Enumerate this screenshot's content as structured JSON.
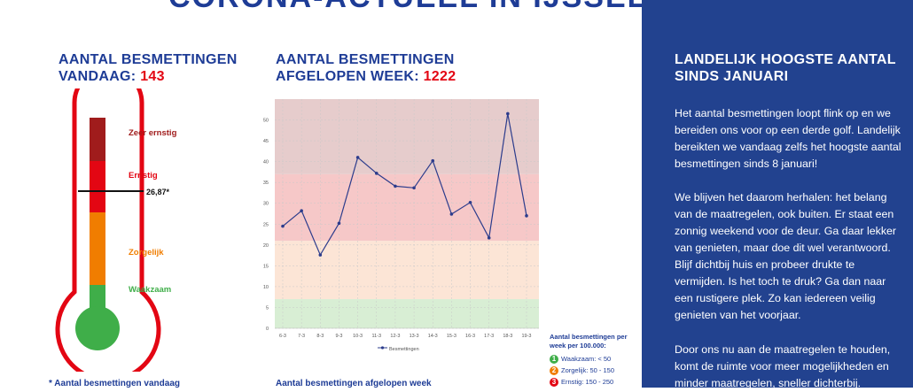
{
  "page_title": "CORONA-ACTUEEL IN IJSSELLAND",
  "thermometer": {
    "heading_line1": "AANTAL BESMETTINGEN",
    "heading_line2_prefix": "VANDAAG: ",
    "today_count": "143",
    "value_label": "26,87*",
    "value": 26.87,
    "levels": [
      {
        "label": "Zeer ernstig",
        "color": "#a01c1c"
      },
      {
        "label": "Ernstig",
        "color": "#e30613"
      },
      {
        "label": "Zorgelijk",
        "color": "#f07d00"
      },
      {
        "label": "Waakzaam",
        "color": "#3fae49"
      }
    ],
    "footnote": "* Aantal besmettingen vandaag"
  },
  "week": {
    "heading_line1": "AANTAL BESMETTINGEN",
    "heading_line2_prefix": "AFGELOPEN WEEK: ",
    "week_count": "1222",
    "footnote": "Aantal besmettingen afgelopen week"
  },
  "chart_data": {
    "type": "line",
    "title": "",
    "xlabel": "",
    "ylabel": "",
    "categories": [
      "6-3",
      "7-3",
      "8-3",
      "9-3",
      "10-3",
      "11-3",
      "12-3",
      "13-3",
      "14-3",
      "15-3",
      "16-3",
      "17-3",
      "18-3",
      "19-3"
    ],
    "series": [
      {
        "name": "Besmettingen",
        "values": [
          24.5,
          28.2,
          17.6,
          25.2,
          41.0,
          37.2,
          34.1,
          33.7,
          40.2,
          27.4,
          30.2,
          21.7,
          51.5,
          27.0
        ]
      }
    ],
    "ylim": [
      0,
      55
    ],
    "yticks": [
      0,
      5,
      10,
      15,
      20,
      25,
      30,
      35,
      40,
      45,
      50
    ],
    "grid": true,
    "bands": [
      {
        "from": 0,
        "to": 7,
        "color": "#d8eed4"
      },
      {
        "from": 7,
        "to": 21,
        "color": "#fce5d6"
      },
      {
        "from": 21,
        "to": 37,
        "color": "#f6c8c8"
      },
      {
        "from": 37,
        "to": 55,
        "color": "#e6cccc"
      }
    ],
    "line_color": "#2c3c8c",
    "legend": "bottom"
  },
  "legend": {
    "title": "Aantal besmettingen per week per 100.000:",
    "items": [
      {
        "num": "1",
        "label": "Waakzaam: < 50",
        "color": "#3fae49"
      },
      {
        "num": "2",
        "label": "Zorgelijk: 50 - 150",
        "color": "#f07d00"
      },
      {
        "num": "3",
        "label": "Ernstig: 150 - 250",
        "color": "#e30613"
      }
    ]
  },
  "sidebar": {
    "heading": "LANDELIJK HOOGSTE AANTAL SINDS JANUARI",
    "paragraph1": "Het aantal besmettingen loopt flink op en we bereiden ons voor op een derde golf. Landelijk bereikten we vandaag zelfs het hoogste aantal besmettingen sinds 8 januari!",
    "paragraph2": "We blijven het daarom herhalen: het belang van de maatregelen, ook buiten. Er staat een zonnig weekend voor de deur. Ga daar lekker van genieten, maar doe dit wel verantwoord. Blijf dichtbij huis en probeer drukte te vermijden. Is het toch te druk? Ga dan naar een rustigere plek. Zo kan iedereen veilig genieten van het voorjaar.",
    "paragraph3": "Door ons nu aan de maatregelen te houden, komt de ruimte voor meer mogelijkheden en minder maatregelen, sneller dichterbij."
  }
}
